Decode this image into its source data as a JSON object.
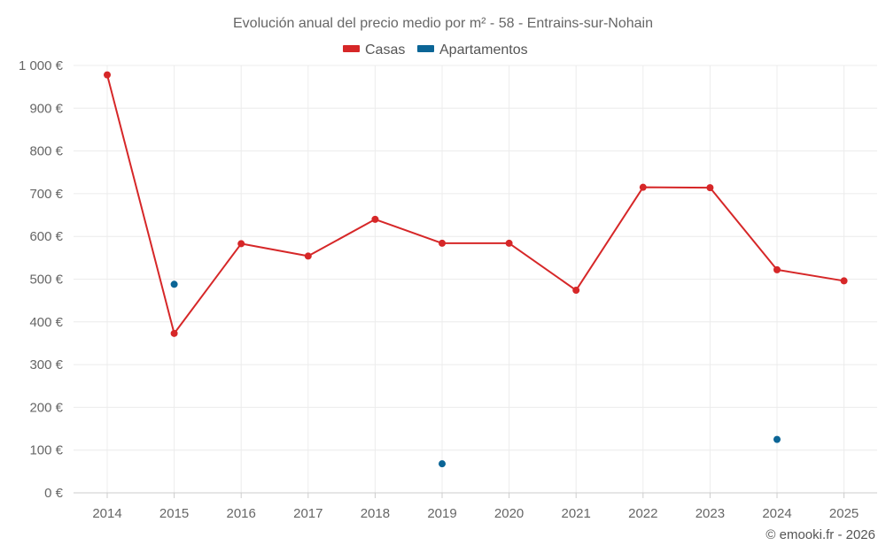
{
  "chart_data": {
    "type": "line",
    "title": "Evolución anual del precio medio por m² - 58 - Entrains-sur-Nohain",
    "xlabel": "",
    "ylabel": "",
    "categories": [
      "2014",
      "2015",
      "2016",
      "2017",
      "2018",
      "2019",
      "2020",
      "2021",
      "2022",
      "2023",
      "2024",
      "2025"
    ],
    "ylim": [
      0,
      1000
    ],
    "yticks": [
      0,
      100,
      200,
      300,
      400,
      500,
      600,
      700,
      800,
      900,
      1000
    ],
    "ytick_labels": [
      "0 €",
      "100 €",
      "200 €",
      "300 €",
      "400 €",
      "500 €",
      "600 €",
      "700 €",
      "800 €",
      "900 €",
      "1 000 €"
    ],
    "grid": true,
    "legend_position": "top-center",
    "series": [
      {
        "name": "Casas",
        "color": "#d62728",
        "style": "line-with-markers",
        "values": [
          978,
          373,
          583,
          554,
          640,
          584,
          584,
          474,
          715,
          714,
          522,
          496
        ]
      },
      {
        "name": "Apartamentos",
        "color": "#0b6596",
        "style": "markers-only",
        "values": [
          null,
          488,
          null,
          null,
          null,
          68,
          null,
          null,
          null,
          null,
          125,
          null
        ]
      }
    ]
  },
  "credit": "© emooki.fr - 2026"
}
